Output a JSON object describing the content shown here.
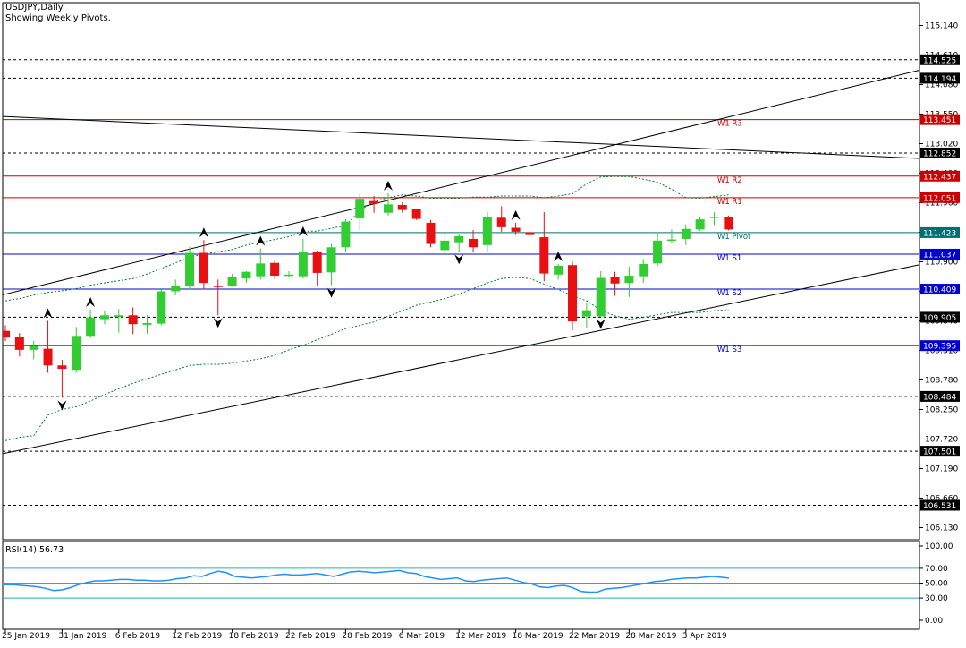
{
  "header": {
    "symbol": "USDJPY,Daily",
    "subtitle": "Showing Weekly Pivots."
  },
  "colors": {
    "bull": "#32cd32",
    "bear": "#e81010",
    "pivot": "#007070",
    "support": "#0000cd",
    "resist": "#cc0000",
    "rsi": "#1e90ff",
    "rsi_level": "#20b2aa",
    "bands": "#007f3f"
  },
  "chart_data": [
    {
      "type": "candlestick",
      "title": "USDJPY,Daily",
      "subtitle": "Showing Weekly Pivots.",
      "y_axis_ticks": [
        "115.140",
        "114.610",
        "114.080",
        "113.550",
        "113.020",
        "112.490",
        "111.960",
        "111.430",
        "110.900",
        "110.370",
        "109.840",
        "109.310",
        "108.780",
        "108.250",
        "107.720",
        "107.190",
        "106.660",
        "106.130"
      ],
      "ylim": [
        105.8,
        115.5
      ],
      "x_tick_labels": [
        "25 Jan 2019",
        "31 Jan 2019",
        "6 Feb 2019",
        "12 Feb 2019",
        "18 Feb 2019",
        "22 Feb 2019",
        "28 Feb 2019",
        "6 Mar 2019",
        "12 Mar 2019",
        "18 Mar 2019",
        "22 Mar 2019",
        "28 Mar 2019",
        "3 Apr 2019"
      ],
      "x_tick_bar_index": [
        0,
        4,
        8,
        12,
        16,
        20,
        24,
        28,
        32,
        36,
        40,
        44,
        48
      ],
      "candles": [
        [
          109.66,
          109.76,
          109.48,
          109.54
        ],
        [
          109.55,
          109.62,
          109.2,
          109.32
        ],
        [
          109.32,
          109.48,
          109.15,
          109.39
        ],
        [
          109.34,
          109.84,
          108.91,
          109.04
        ],
        [
          109.04,
          109.14,
          108.46,
          108.98
        ],
        [
          108.96,
          109.73,
          108.91,
          109.57
        ],
        [
          109.57,
          110.04,
          109.53,
          109.9
        ],
        [
          109.87,
          110.03,
          109.78,
          109.94
        ],
        [
          109.91,
          110.05,
          109.63,
          109.94
        ],
        [
          109.94,
          110.08,
          109.6,
          109.78
        ],
        [
          109.77,
          109.94,
          109.61,
          109.8
        ],
        [
          109.79,
          110.4,
          109.76,
          110.37
        ],
        [
          110.37,
          110.58,
          110.3,
          110.46
        ],
        [
          110.46,
          111.17,
          110.4,
          111.06
        ],
        [
          111.06,
          111.29,
          110.4,
          110.52
        ],
        [
          110.47,
          110.58,
          109.94,
          110.46
        ],
        [
          110.46,
          110.68,
          110.45,
          110.62
        ],
        [
          110.6,
          110.73,
          110.52,
          110.72
        ],
        [
          110.64,
          111.14,
          110.58,
          110.87
        ],
        [
          110.88,
          110.94,
          110.59,
          110.65
        ],
        [
          110.66,
          110.73,
          110.62,
          110.67
        ],
        [
          110.64,
          111.31,
          110.6,
          111.07
        ],
        [
          111.07,
          111.1,
          110.46,
          110.7
        ],
        [
          110.71,
          111.22,
          110.48,
          111.16
        ],
        [
          111.16,
          111.66,
          111.07,
          111.62
        ],
        [
          111.68,
          112.12,
          111.47,
          112.03
        ],
        [
          111.99,
          112.08,
          111.78,
          111.94
        ],
        [
          111.78,
          112.13,
          111.73,
          111.93
        ],
        [
          111.92,
          111.97,
          111.78,
          111.83
        ],
        [
          111.85,
          111.85,
          111.65,
          111.67
        ],
        [
          111.6,
          111.65,
          111.16,
          111.22
        ],
        [
          111.11,
          111.42,
          111.03,
          111.28
        ],
        [
          111.25,
          111.4,
          111.08,
          111.36
        ],
        [
          111.31,
          111.47,
          111.08,
          111.16
        ],
        [
          111.2,
          111.8,
          111.08,
          111.7
        ],
        [
          111.69,
          111.9,
          111.44,
          111.52
        ],
        [
          111.51,
          111.6,
          111.38,
          111.44
        ],
        [
          111.43,
          111.54,
          111.26,
          111.38
        ],
        [
          111.34,
          111.79,
          110.55,
          110.69
        ],
        [
          110.67,
          110.86,
          110.58,
          110.83
        ],
        [
          110.84,
          110.91,
          109.67,
          109.83
        ],
        [
          109.92,
          110.15,
          109.7,
          110.03
        ],
        [
          109.92,
          110.73,
          109.92,
          110.61
        ],
        [
          110.63,
          110.72,
          110.29,
          110.51
        ],
        [
          110.52,
          110.81,
          110.27,
          110.65
        ],
        [
          110.64,
          110.95,
          110.52,
          110.86
        ],
        [
          110.87,
          111.43,
          110.82,
          111.28
        ],
        [
          111.28,
          111.48,
          111.23,
          111.3
        ],
        [
          111.31,
          111.57,
          111.2,
          111.49
        ],
        [
          111.48,
          111.7,
          111.45,
          111.66
        ],
        [
          111.69,
          111.79,
          111.56,
          111.71
        ],
        [
          111.71,
          111.73,
          111.46,
          111.48
        ]
      ],
      "fractals": [
        {
          "bar": 3,
          "dir": "up"
        },
        {
          "bar": 4,
          "dir": "down"
        },
        {
          "bar": 6,
          "dir": "up"
        },
        {
          "bar": 14,
          "dir": "up"
        },
        {
          "bar": 15,
          "dir": "down"
        },
        {
          "bar": 18,
          "dir": "up"
        },
        {
          "bar": 21,
          "dir": "up"
        },
        {
          "bar": 23,
          "dir": "down"
        },
        {
          "bar": 27,
          "dir": "up"
        },
        {
          "bar": 32,
          "dir": "down"
        },
        {
          "bar": 36,
          "dir": "up"
        },
        {
          "bar": 39,
          "dir": "up"
        },
        {
          "bar": 42,
          "dir": "down"
        }
      ],
      "horizontal_levels": [
        {
          "value": 114.525,
          "label": "114.525",
          "style": "dash",
          "color": "black"
        },
        {
          "value": 114.194,
          "label": "114.194",
          "style": "dash",
          "color": "black"
        },
        {
          "value": 113.451,
          "label": "113.451",
          "name": "W1 R3",
          "style": "solid",
          "color": "resist"
        },
        {
          "value": 112.852,
          "label": "112.852",
          "style": "dash",
          "color": "black"
        },
        {
          "value": 112.437,
          "label": "112.437",
          "name": "W1 R2",
          "style": "solid",
          "color": "resist"
        },
        {
          "value": 112.051,
          "label": "112.051",
          "name": "W1 R1",
          "style": "solid",
          "color": "resist"
        },
        {
          "value": 111.423,
          "label": "111.423",
          "name": "W1 Pivot",
          "style": "solid",
          "color": "pivot"
        },
        {
          "value": 111.037,
          "label": "111.037",
          "name": "W1 S1",
          "style": "solid",
          "color": "support"
        },
        {
          "value": 110.409,
          "label": "110.409",
          "name": "W1 S2",
          "style": "solid",
          "color": "support"
        },
        {
          "value": 109.905,
          "label": "109.905",
          "style": "dash",
          "color": "black"
        },
        {
          "value": 109.395,
          "label": "109.395",
          "name": "W1 S3",
          "style": "solid",
          "color": "support"
        },
        {
          "value": 108.484,
          "label": "108.484",
          "style": "dash",
          "color": "black"
        },
        {
          "value": 107.501,
          "label": "107.501",
          "style": "dash",
          "color": "black"
        },
        {
          "value": 106.531,
          "label": "106.531",
          "style": "dash",
          "color": "black"
        }
      ],
      "trendlines": [
        {
          "from": {
            "bar": -0.3,
            "value": 110.3
          },
          "to": {
            "bar": 67.4,
            "value": 114.52
          }
        },
        {
          "from": {
            "bar": -0.3,
            "value": 107.45
          },
          "to": {
            "bar": 67.4,
            "value": 111.0
          }
        },
        {
          "from": {
            "bar": -0.3,
            "value": 113.51
          },
          "to": {
            "bar": 67.4,
            "value": 112.72
          }
        }
      ],
      "upper_band": [
        110.2,
        110.24,
        110.3,
        110.35,
        110.38,
        110.42,
        110.48,
        110.52,
        110.56,
        110.6,
        110.68,
        110.78,
        110.88,
        110.98,
        111.04,
        111.08,
        111.12,
        111.2,
        111.25,
        111.3,
        111.35,
        111.45,
        111.45,
        111.5,
        111.55,
        111.82,
        111.98,
        112.05,
        112.1,
        112.08,
        112.04,
        112.04,
        112.04,
        112.06,
        112.06,
        112.08,
        112.08,
        112.08,
        112.05,
        112.08,
        112.12,
        112.3,
        112.42,
        112.43,
        112.43,
        112.38,
        112.33,
        112.2,
        112.05,
        112.04,
        112.07,
        112.1
      ],
      "lower_band": [
        107.69,
        107.75,
        107.78,
        108.15,
        108.25,
        108.3,
        108.4,
        108.52,
        108.62,
        108.72,
        108.8,
        108.88,
        108.96,
        109.04,
        109.06,
        109.06,
        109.08,
        109.12,
        109.16,
        109.22,
        109.32,
        109.4,
        109.5,
        109.6,
        109.7,
        109.76,
        109.82,
        109.92,
        110.02,
        110.12,
        110.18,
        110.24,
        110.32,
        110.42,
        110.52,
        110.6,
        110.62,
        110.6,
        110.5,
        110.4,
        110.29,
        110.2,
        110.03,
        109.93,
        109.87,
        109.9,
        109.95,
        109.99,
        109.99,
        109.99,
        110.02,
        110.04
      ]
    },
    {
      "type": "line",
      "title": "RSI(14) 56.73",
      "series": [
        {
          "name": "RSI(14) 56.73",
          "values": [
            48,
            48,
            47,
            46,
            45,
            43,
            40,
            41,
            44,
            48,
            51,
            53,
            53,
            54,
            55,
            55,
            54,
            54,
            53,
            53,
            54,
            56,
            57,
            60,
            59,
            63,
            66,
            64,
            59,
            58,
            57,
            58,
            59,
            61,
            62,
            61,
            61,
            62,
            63,
            61,
            59,
            62,
            65,
            66,
            65,
            64,
            65,
            66,
            67,
            64,
            63,
            59,
            57,
            55,
            56,
            57,
            53,
            52,
            54,
            55,
            56,
            57,
            54,
            51,
            49,
            45,
            44,
            46,
            47,
            44,
            39,
            38,
            38,
            42,
            43,
            44,
            46,
            48,
            50,
            52,
            53,
            55,
            56,
            57,
            57,
            58,
            59,
            58,
            56.73
          ]
        }
      ],
      "y_axis_ticks": [
        "100.00",
        "70.00",
        "50.00",
        "30.00",
        "0.00"
      ],
      "levels": [
        70,
        50,
        30
      ],
      "ylim": [
        0,
        100
      ]
    }
  ]
}
